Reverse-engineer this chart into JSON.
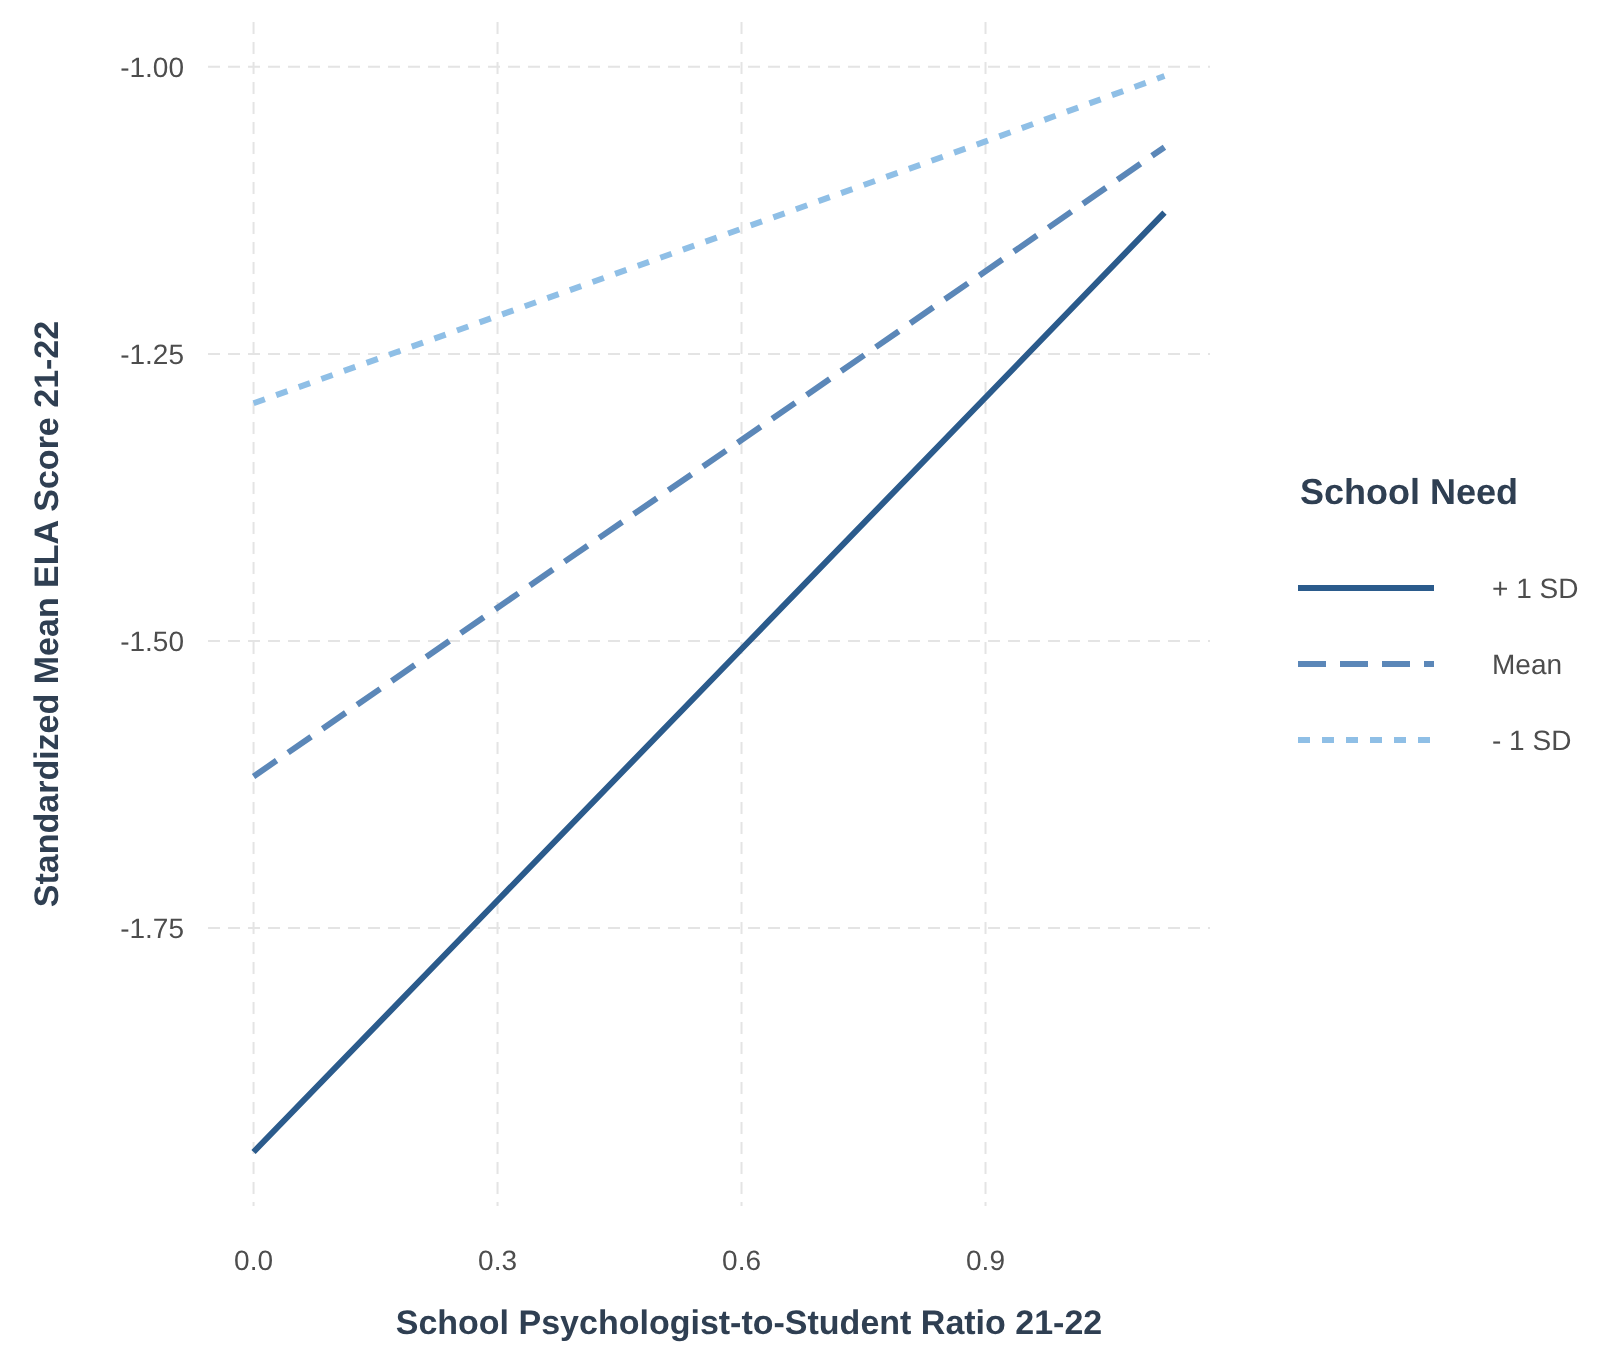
{
  "chart_data": {
    "type": "line",
    "xlabel": "School Psychologist-to-Student Ratio 21-22",
    "ylabel": "Standardized Mean ELA Score 21-22",
    "legend_title": "School Need",
    "legend": "right",
    "grid": true,
    "xlim": [
      -0.056,
      1.176
    ],
    "xticks": [
      {
        "value": 0,
        "label": "0.0"
      },
      0.3,
      0.6,
      0.9
    ],
    "ylim": [
      -1.992,
      -0.961
    ],
    "yticks": [
      {
        "value": -1,
        "label": "-1.00"
      },
      -1.25,
      {
        "value": -1.5,
        "label": "-1.50"
      },
      -1.75
    ],
    "x": [
      0,
      0.3,
      0.6,
      0.9,
      1.12
    ],
    "series": [
      {
        "name": "+ 1 SD",
        "color": "#2b5b8c",
        "line_style": "solid",
        "values": [
          -1.945,
          -1.726,
          -1.507,
          -1.288,
          -1.127
        ]
      },
      {
        "name": "Mean",
        "color": "#5b87b8",
        "line_style": "dashed",
        "values": [
          -1.618,
          -1.471,
          -1.325,
          -1.178,
          -1.07
        ]
      },
      {
        "name": "- 1 SD",
        "color": "#8fbfe6",
        "line_style": "dotted",
        "values": [
          -1.293,
          -1.217,
          -1.141,
          -1.065,
          -1.008
        ]
      }
    ]
  }
}
